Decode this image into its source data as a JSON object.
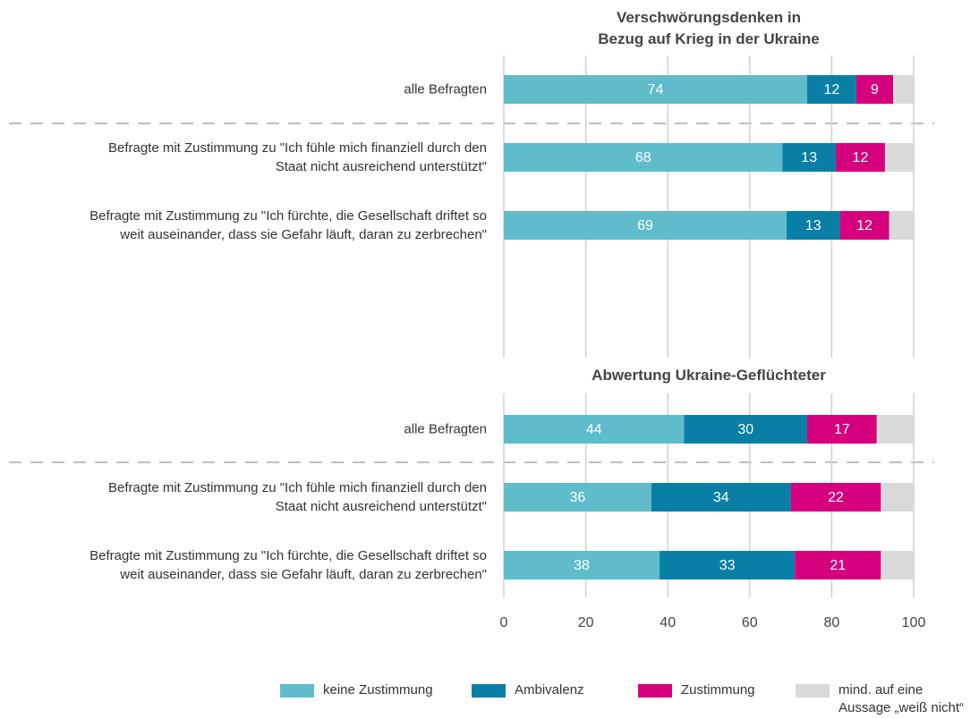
{
  "chart_data": [
    {
      "type": "stacked-barh",
      "title": "Verschwörungsdenken in\nBezug auf Krieg in der Ukraine",
      "categories": [
        "alle Befragten",
        "Befragte mit Zustimmung zu \"Ich fühle mich finanziell durch den\nStaat nicht ausreichend unterstützt\"",
        "Befragte mit Zustimmung zu \"Ich fürchte, die Gesellschaft driftet so\nweit auseinander, dass sie Gefahr läuft, daran zu zerbrechen\""
      ],
      "series": [
        {
          "name": "keine Zustimmung",
          "color": "#5fbccb",
          "values": [
            74,
            68,
            69
          ]
        },
        {
          "name": "Ambivalenz",
          "color": "#0a7fa6",
          "values": [
            12,
            13,
            13
          ]
        },
        {
          "name": "Zustimmung",
          "color": "#d6007f",
          "values": [
            9,
            12,
            12
          ]
        },
        {
          "name": "mind. auf eine\nAussage „weiß nicht“",
          "color": "#d9d9d9",
          "values": [
            5,
            7,
            6
          ],
          "labels": false
        }
      ],
      "xlim": [
        0,
        100
      ],
      "xticks": [
        0,
        20,
        40,
        60,
        80,
        100
      ],
      "grid": true
    },
    {
      "type": "stacked-barh",
      "title": "Abwertung Ukraine-Geflüchteter",
      "categories": [
        "alle Befragten",
        "Befragte mit Zustimmung zu \"Ich fühle mich finanziell durch den\nStaat nicht ausreichend unterstützt\"",
        "Befragte mit Zustimmung zu \"Ich fürchte, die Gesellschaft driftet so\nweit auseinander, dass sie Gefahr läuft, daran zu zerbrechen\""
      ],
      "series": [
        {
          "name": "keine Zustimmung",
          "color": "#5fbccb",
          "values": [
            44,
            36,
            38
          ]
        },
        {
          "name": "Ambivalenz",
          "color": "#0a7fa6",
          "values": [
            30,
            34,
            33
          ]
        },
        {
          "name": "Zustimmung",
          "color": "#d6007f",
          "values": [
            17,
            22,
            21
          ]
        },
        {
          "name": "mind. auf eine\nAussage „weiß nicht“",
          "color": "#d9d9d9",
          "values": [
            9,
            8,
            8
          ],
          "labels": false
        }
      ],
      "xlim": [
        0,
        100
      ],
      "xticks": [
        0,
        20,
        40,
        60,
        80,
        100
      ],
      "grid": true
    }
  ]
}
